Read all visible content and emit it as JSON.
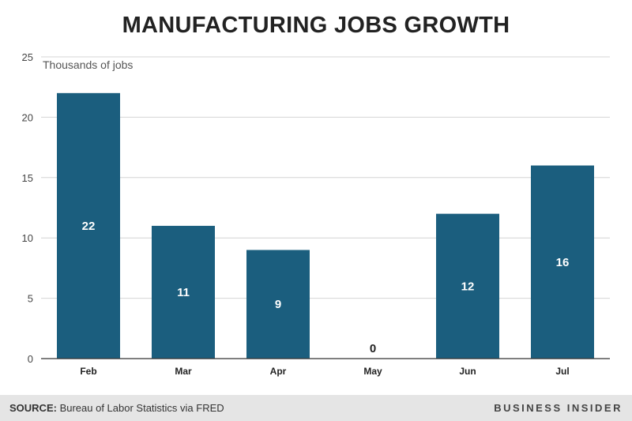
{
  "title": "MANUFACTURING JOBS GROWTH",
  "colors": {
    "bar": "#1b5e7e",
    "grid": "#d4d4d4",
    "axis": "#333333"
  },
  "chart_data": {
    "type": "bar",
    "title": "MANUFACTURING JOBS GROWTH",
    "ylabel": "Thousands of jobs",
    "xlabel": "",
    "categories": [
      "Feb",
      "Mar",
      "Apr",
      "May",
      "Jun",
      "Jul"
    ],
    "values": [
      22,
      11,
      9,
      0,
      12,
      16
    ],
    "data_labels": [
      "22",
      "11",
      "9",
      "0",
      "12",
      "16"
    ],
    "ylim": [
      0,
      25
    ],
    "yticks": [
      0,
      5,
      10,
      15,
      20,
      25
    ],
    "grid": true,
    "legend": "none"
  },
  "footer": {
    "source_prefix": "SOURCE:",
    "source_text": " Bureau of Labor Statistics via FRED",
    "brand": "BUSINESS INSIDER"
  }
}
